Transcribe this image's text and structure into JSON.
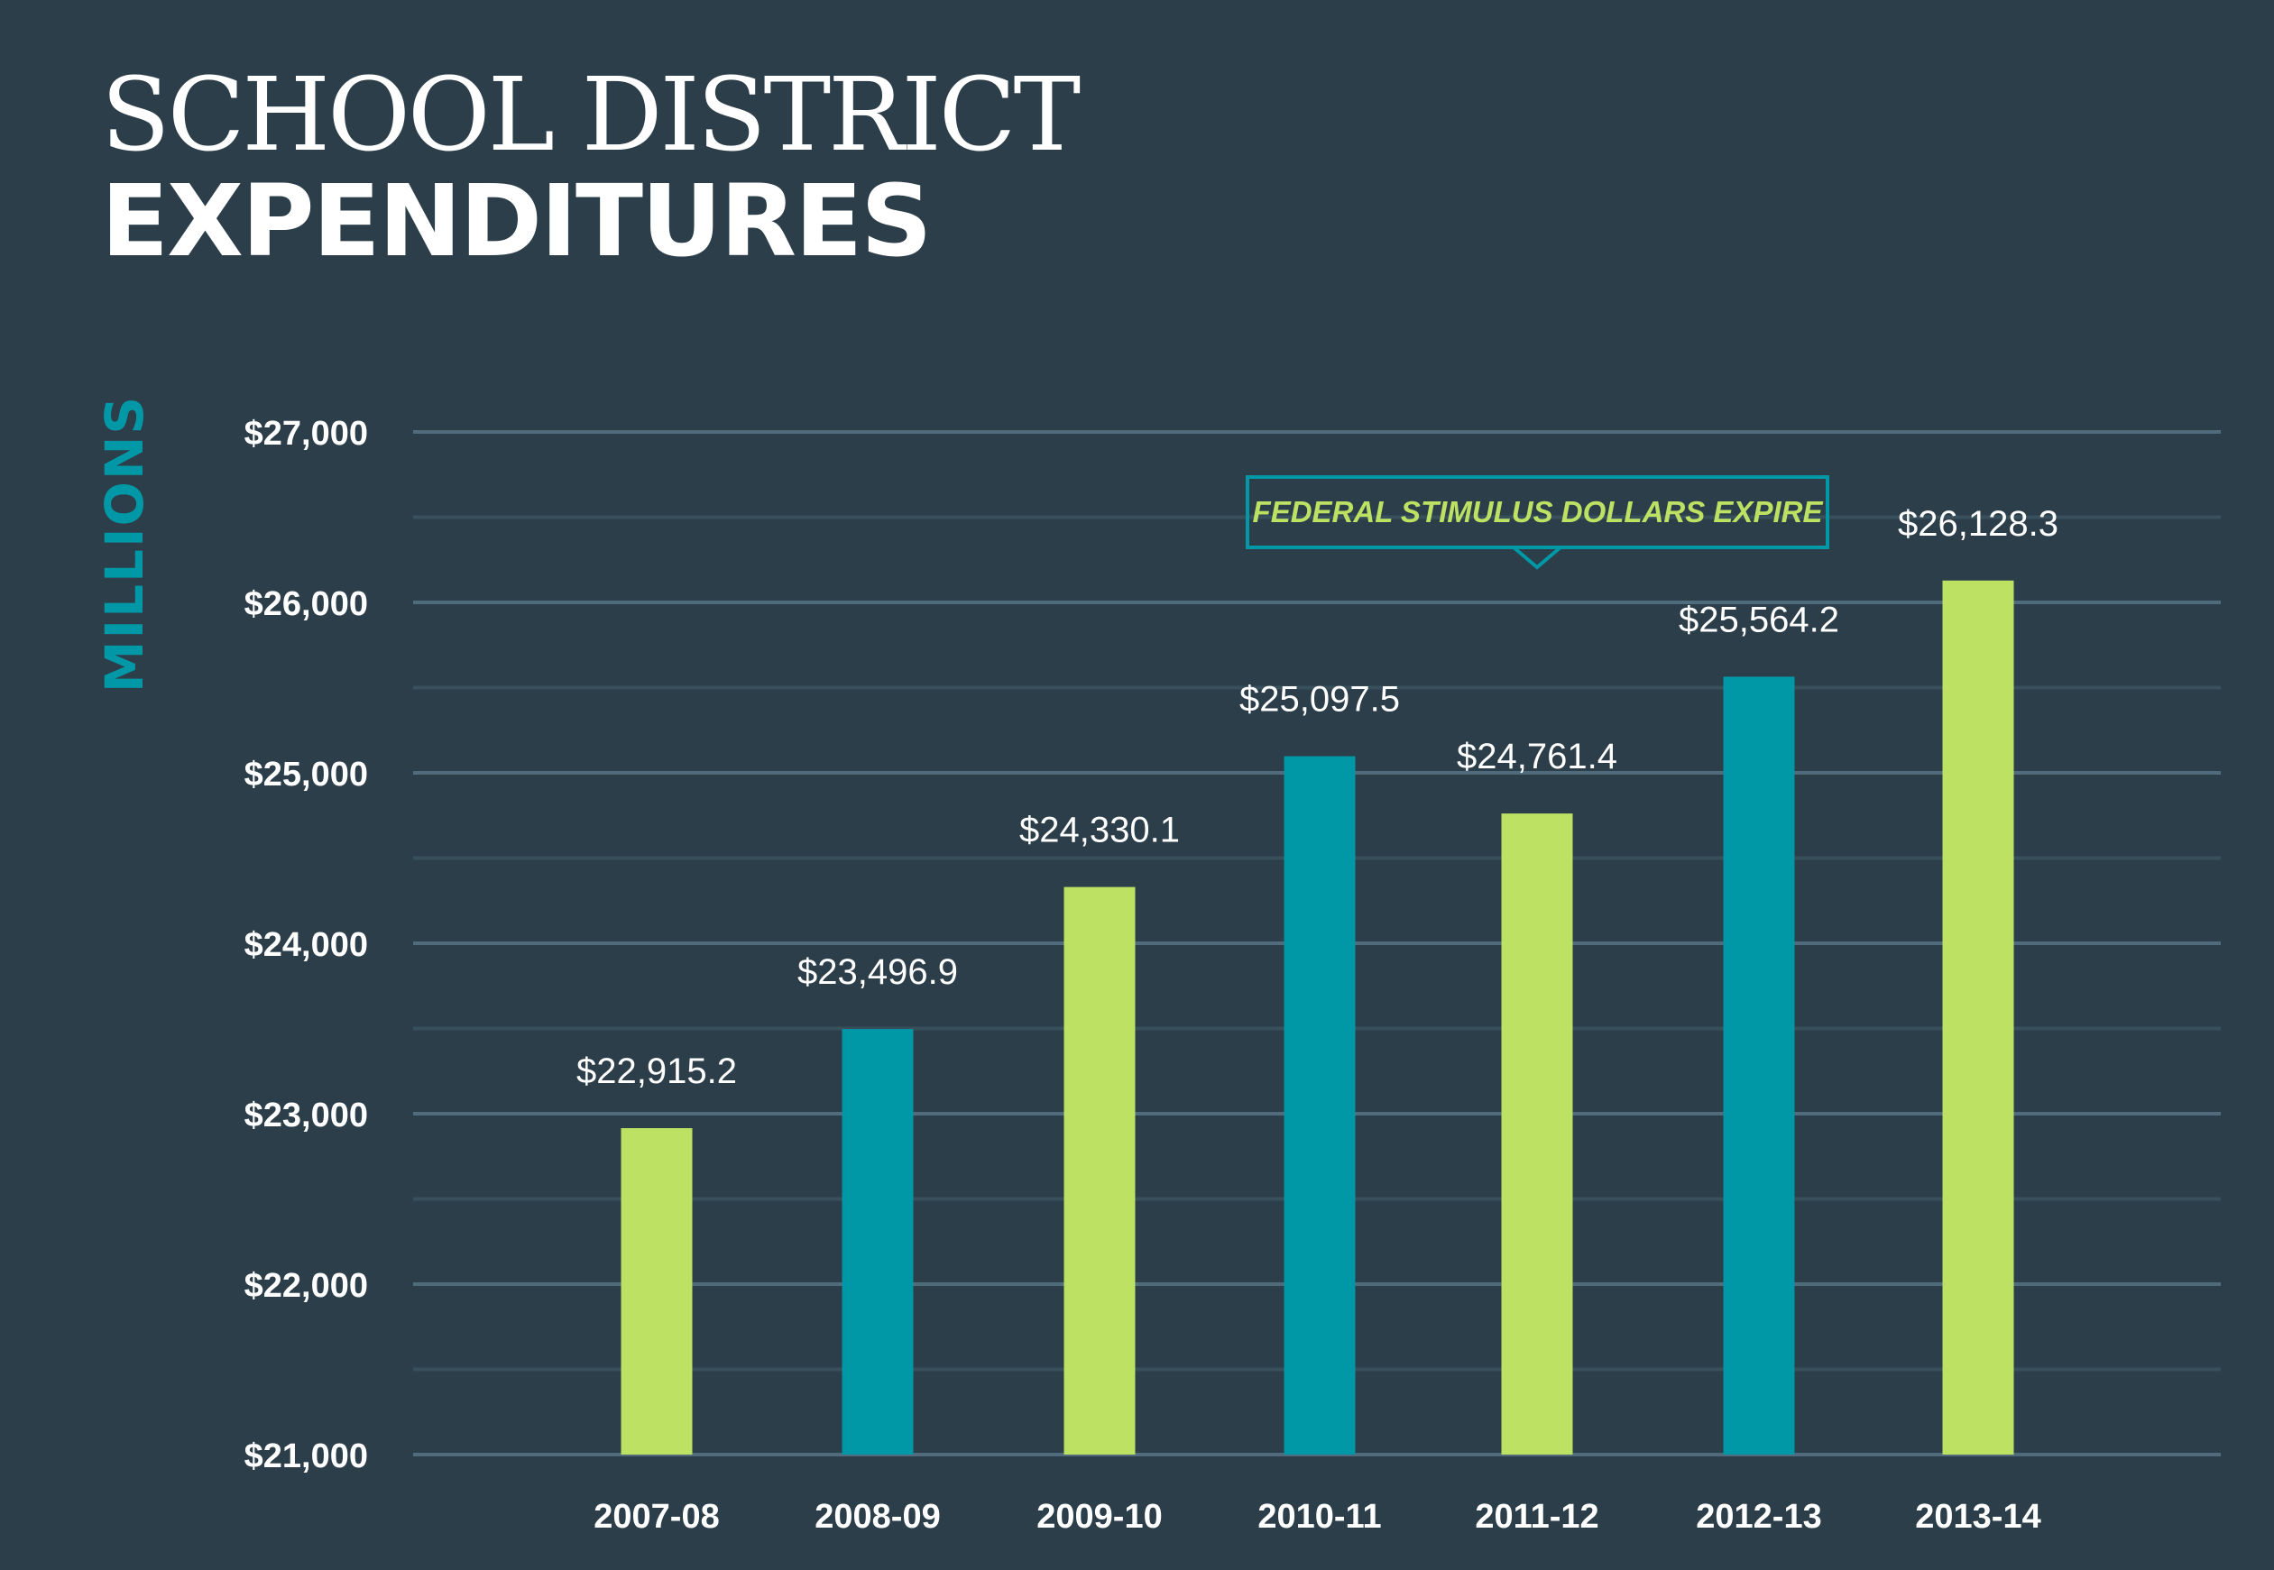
{
  "chart_data": {
    "type": "bar",
    "title": "SCHOOL DISTRICT",
    "title_line2": "EXPENDITURES",
    "ylabel": "MILLIONS",
    "xlabel": "",
    "ylim": [
      21000,
      27000
    ],
    "yticks": [
      21000,
      22000,
      23000,
      24000,
      25000,
      26000,
      27000
    ],
    "ytick_labels": [
      "$21,000",
      "$22,000",
      "$23,000",
      "$24,000",
      "$25,000",
      "$26,000",
      "$27,000"
    ],
    "grid": true,
    "categories": [
      "2007-08",
      "2008-09",
      "2009-10",
      "2010-11",
      "2011-12",
      "2012-13",
      "2013-14"
    ],
    "values": [
      22915.2,
      23496.9,
      24330.1,
      25097.5,
      24761.4,
      25564.2,
      26128.3
    ],
    "data_labels": [
      "$22,915.2",
      "$23,496.9",
      "$24,330.1",
      "$25,097.5",
      "$24,761.4",
      "$25,564.2",
      "$26,128.3"
    ],
    "bar_colors": [
      "#bde162",
      "#0097a7",
      "#bde162",
      "#0097a7",
      "#bde162",
      "#0097a7",
      "#bde162"
    ],
    "annotation": {
      "text": "FEDERAL STIMULUS DOLLARS EXPIRE",
      "category": "2011-12",
      "border_color": "#0097a7",
      "text_color": "#bde162"
    },
    "colors": {
      "background": "#2c3e49",
      "teal": "#0097a7",
      "green": "#bde162",
      "grid_major": "#4f6b7c",
      "grid_minor": "#38505c"
    }
  }
}
